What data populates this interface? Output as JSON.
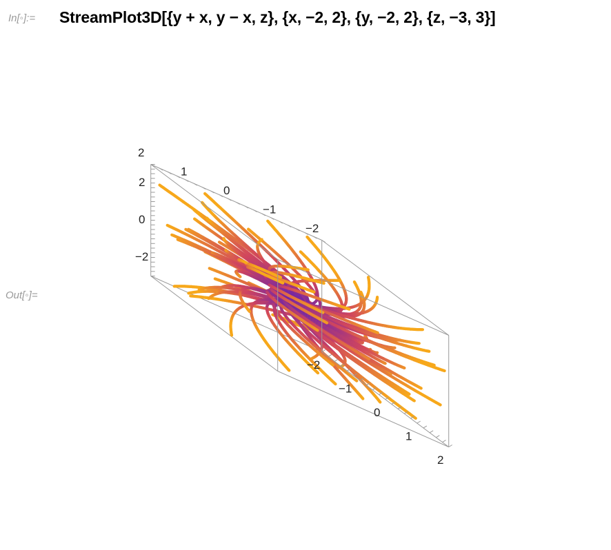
{
  "notebook": {
    "input_label": "In[◦]:=",
    "output_label": "Out[◦]=",
    "input_code": "StreamPlot3D[{y + x, y − x, z}, {x, −2, 2}, {y, −2, 2}, {z, −3, 3}]"
  },
  "chart_data": {
    "type": "stream3d",
    "vector_field": [
      "y + x",
      "y - x",
      "z"
    ],
    "x_range": [
      -2,
      2
    ],
    "y_range": [
      -2,
      2
    ],
    "z_range": [
      -3,
      3
    ],
    "x_ticks": [
      "−2",
      "−1",
      "0",
      "1",
      "2"
    ],
    "y_ticks": [
      "−2",
      "−1",
      "0",
      "1",
      "2"
    ],
    "z_ticks": [
      "2",
      "0",
      "−2"
    ],
    "color_low": "#5b1fb8",
    "color_mid": "#d0455e",
    "color_high": "#f7a81b",
    "box_color": "#9a9a9a"
  }
}
